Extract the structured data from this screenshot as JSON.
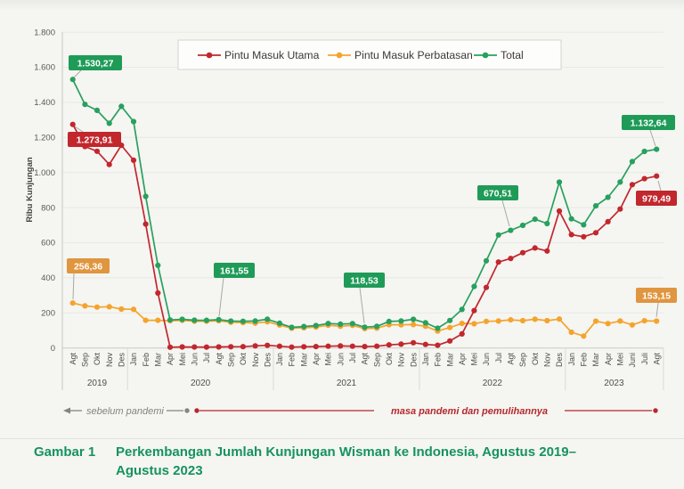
{
  "figure": {
    "caption": {
      "label": "Gambar 1",
      "line1": "Perkembangan Jumlah Kunjungan Wisman ke Indonesia, Agustus 2019–",
      "line2": "Agustus 2023",
      "color": "#15935d"
    }
  },
  "chart_data": {
    "type": "line",
    "ylabel": "Ribu Kunjungan",
    "ylim": [
      0,
      1800
    ],
    "ytick_step": 200,
    "ytick_labels": [
      "0",
      "200",
      "400",
      "600",
      "800",
      "1.000",
      "1.200",
      "1.400",
      "1.600",
      "1.800"
    ],
    "grid": true,
    "legend_position": "top-center",
    "months": [
      "Agt",
      "Sep",
      "Okt",
      "Nov",
      "Des",
      "Jan",
      "Feb",
      "Mar",
      "Apr",
      "Mei",
      "Jun",
      "Jul",
      "Agt",
      "Sep",
      "Okt",
      "Nov",
      "Des",
      "Jan",
      "Feb",
      "Mar",
      "Apr",
      "Mei",
      "Jun",
      "Jul",
      "Agt",
      "Sep",
      "Okt",
      "Nov",
      "Des",
      "Jan",
      "Feb",
      "Mar",
      "Apr",
      "Mei",
      "Jun",
      "Jul",
      "Agt",
      "Sep",
      "Okt",
      "Nov",
      "Des",
      "Jan",
      "Feb",
      "Mar",
      "Apr",
      "Mei",
      "Juni",
      "Juli",
      "Agt"
    ],
    "year_groups": [
      {
        "label": "2019",
        "count": 5
      },
      {
        "label": "2020",
        "count": 12
      },
      {
        "label": "2021",
        "count": 12
      },
      {
        "label": "2022",
        "count": 12
      },
      {
        "label": "2023",
        "count": 8
      }
    ],
    "series": [
      {
        "name": "Pintu Masuk Utama",
        "color": "#c1272d",
        "box_color": "#c1272d",
        "values": [
          1273.91,
          1148.3,
          1121.4,
          1045.8,
          1155.1,
          1070,
          706,
          313,
          4.5,
          6.1,
          5.7,
          5,
          6,
          7,
          7.8,
          12.1,
          15.1,
          10.3,
          5.1,
          7.1,
          8.2,
          9.9,
          11.9,
          10.1,
          8,
          10.1,
          18,
          21.9,
          30.1,
          20.1,
          15.9,
          40,
          80,
          213,
          345,
          490,
          510.25,
          543,
          570,
          553,
          780,
          646,
          634,
          657,
          720,
          792,
          931,
          965,
          979.49
        ]
      },
      {
        "name": "Pintu Masuk Perbatasan",
        "color": "#f4a42c",
        "box_color": "#e0953f",
        "values": [
          256.36,
          240,
          233,
          235,
          222,
          220.4,
          158,
          157.9,
          155.5,
          157.6,
          152.6,
          152.9,
          155.55,
          146.5,
          144.5,
          141.5,
          149,
          130.96,
          112.49,
          115.01,
          119.47,
          129.5,
          124,
          129.03,
          110.53,
          113.03,
          133.03,
          132.05,
          133.52,
          123.64,
          96.55,
          117,
          140,
          138,
          152,
          154,
          160.26,
          156,
          164,
          156,
          165,
          89.95,
          67.93,
          152.96,
          139.06,
          153.59,
          131.52,
          155.44,
          153.15
        ]
      },
      {
        "name": "Total",
        "color": "#28a05e",
        "box_color": "#1f9b58",
        "values": [
          1530.27,
          1388.33,
          1354.4,
          1280.78,
          1377.07,
          1290.41,
          863.96,
          470.9,
          160.04,
          163.65,
          158.26,
          157.94,
          161.55,
          153.5,
          152.29,
          153.59,
          164.09,
          141.26,
          117.59,
          122.11,
          127.67,
          139.4,
          135.9,
          139.13,
          118.53,
          123.13,
          151.03,
          153.95,
          163.62,
          143.74,
          112.45,
          157,
          220,
          351,
          497,
          644,
          670.51,
          699,
          734,
          709,
          945,
          735.95,
          701.93,
          809.96,
          859.06,
          945.59,
          1062.52,
          1120.44,
          1132.64
        ]
      }
    ],
    "point_labels": [
      {
        "series": 0,
        "i": 0,
        "text": "1.273,91"
      },
      {
        "series": 2,
        "i": 0,
        "text": "1.530,27"
      },
      {
        "series": 1,
        "i": 0,
        "text": "256,36"
      },
      {
        "series": 2,
        "i": 12,
        "text": "161,55"
      },
      {
        "series": 2,
        "i": 24,
        "text": "118,53"
      },
      {
        "series": 2,
        "i": 36,
        "text": "670,51"
      },
      {
        "series": 2,
        "i": 48,
        "text": "1.132,64"
      },
      {
        "series": 0,
        "i": 48,
        "text": "979,49"
      },
      {
        "series": 1,
        "i": 48,
        "text": "153,15"
      }
    ],
    "timeline": {
      "pre": {
        "label": "sebelum pandemi",
        "color": "#85857c"
      },
      "pandemic": {
        "label": "masa pandemi dan pemulihannya",
        "color": "#b5292c"
      }
    }
  }
}
